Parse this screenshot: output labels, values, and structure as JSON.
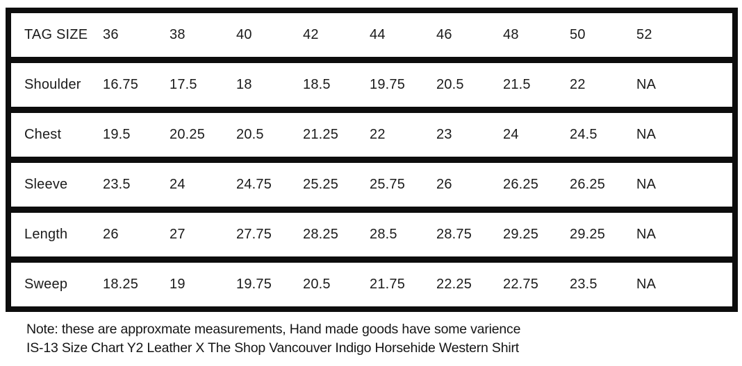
{
  "chart_data": {
    "type": "table",
    "title": "IS-13 Size Chart",
    "header": [
      "TAG SIZE",
      "36",
      "38",
      "40",
      "42",
      "44",
      "46",
      "48",
      "50",
      "52"
    ],
    "rows": [
      {
        "label": "Shoulder",
        "values": [
          "16.75",
          "17.5",
          "18",
          "18.5",
          "19.75",
          "20.5",
          "21.5",
          "22",
          "NA"
        ]
      },
      {
        "label": "Chest",
        "values": [
          "19.5",
          "20.25",
          "20.5",
          "21.25",
          "22",
          "23",
          "24",
          "24.5",
          "NA"
        ]
      },
      {
        "label": "Sleeve",
        "values": [
          "23.5",
          "24",
          "24.75",
          "25.25",
          "25.75",
          "26",
          "26.25",
          "26.25",
          "NA"
        ]
      },
      {
        "label": "Length",
        "values": [
          "26",
          "27",
          "27.75",
          "28.25",
          "28.5",
          "28.75",
          "29.25",
          "29.25",
          "NA"
        ]
      },
      {
        "label": "Sweep",
        "values": [
          "18.25",
          "19",
          "19.75",
          "20.5",
          "21.75",
          "22.25",
          "22.75",
          "23.5",
          "NA"
        ]
      }
    ]
  },
  "footer": {
    "line1": "Note: these are approxmate measurements, Hand made goods have some varience",
    "line2": "IS-13 Size Chart Y2 Leather X The Shop Vancouver Indigo Horsehide Western Shirt"
  },
  "colors": {
    "border": "#0d0d0d",
    "text": "#1b1b1b",
    "background": "#ffffff"
  }
}
